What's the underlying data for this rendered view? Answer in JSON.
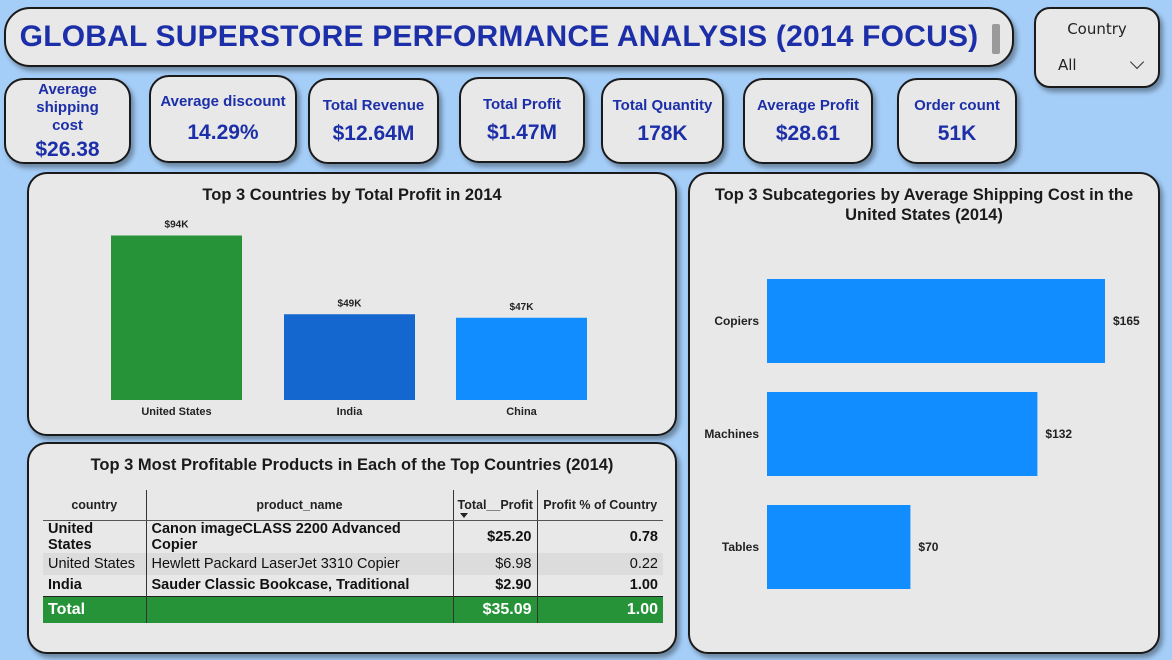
{
  "header": {
    "title": "GLOBAL SUPERSTORE PERFORMANCE ANALYSIS (2014 FOCUS)"
  },
  "slicer": {
    "label": "Country",
    "selected": "All"
  },
  "kpis": [
    {
      "label": "Average shipping cost",
      "value": "$26.38"
    },
    {
      "label": "Average discount",
      "value": "14.29%"
    },
    {
      "label": "Total Revenue",
      "value": "$12.64M"
    },
    {
      "label": "Total Profit",
      "value": "$1.47M"
    },
    {
      "label": "Total Quantity",
      "value": "178K"
    },
    {
      "label": "Average Profit",
      "value": "$28.61"
    },
    {
      "label": "Order count",
      "value": "51K"
    }
  ],
  "chart_data": [
    {
      "type": "bar",
      "title": "Top 3 Countries by Total Profit in 2014",
      "categories": [
        "United States",
        "India",
        "China"
      ],
      "values": [
        94,
        49,
        47
      ],
      "data_labels": [
        "$94K",
        "$49K",
        "$47K"
      ],
      "colors": [
        "#269338",
        "#1467cf",
        "#118dff"
      ],
      "ylim": [
        0,
        100
      ],
      "xlabel": "",
      "ylabel": "",
      "grid": false
    },
    {
      "type": "bar",
      "orientation": "horizontal",
      "title": "Top 3 Subcategories by Average Shipping Cost in the United States (2014)",
      "categories": [
        "Copiers",
        "Machines",
        "Tables"
      ],
      "values": [
        165,
        132,
        70
      ],
      "data_labels": [
        "$165",
        "$132",
        "$70"
      ],
      "colors": [
        "#118dff",
        "#118dff",
        "#118dff"
      ],
      "xlim": [
        0,
        170
      ],
      "xlabel": "",
      "ylabel": "",
      "grid": false
    }
  ],
  "table": {
    "title": "Top 3 Most Profitable Products in Each of the Top Countries (2014)",
    "columns": [
      "country",
      "product_name",
      "Total__Profit",
      "Profit % of Country"
    ],
    "rows": [
      {
        "country": "United States",
        "product": "Canon imageCLASS 2200 Advanced Copier",
        "profit": "$25.20",
        "pct": "0.78"
      },
      {
        "country": "United States",
        "product": "Hewlett Packard LaserJet 3310 Copier",
        "profit": "$6.98",
        "pct": "0.22"
      },
      {
        "country": "India",
        "product": "Sauder Classic Bookcase, Traditional",
        "profit": "$2.90",
        "pct": "1.00"
      }
    ],
    "total": {
      "label": "Total",
      "profit": "$35.09",
      "pct": "1.00"
    }
  }
}
